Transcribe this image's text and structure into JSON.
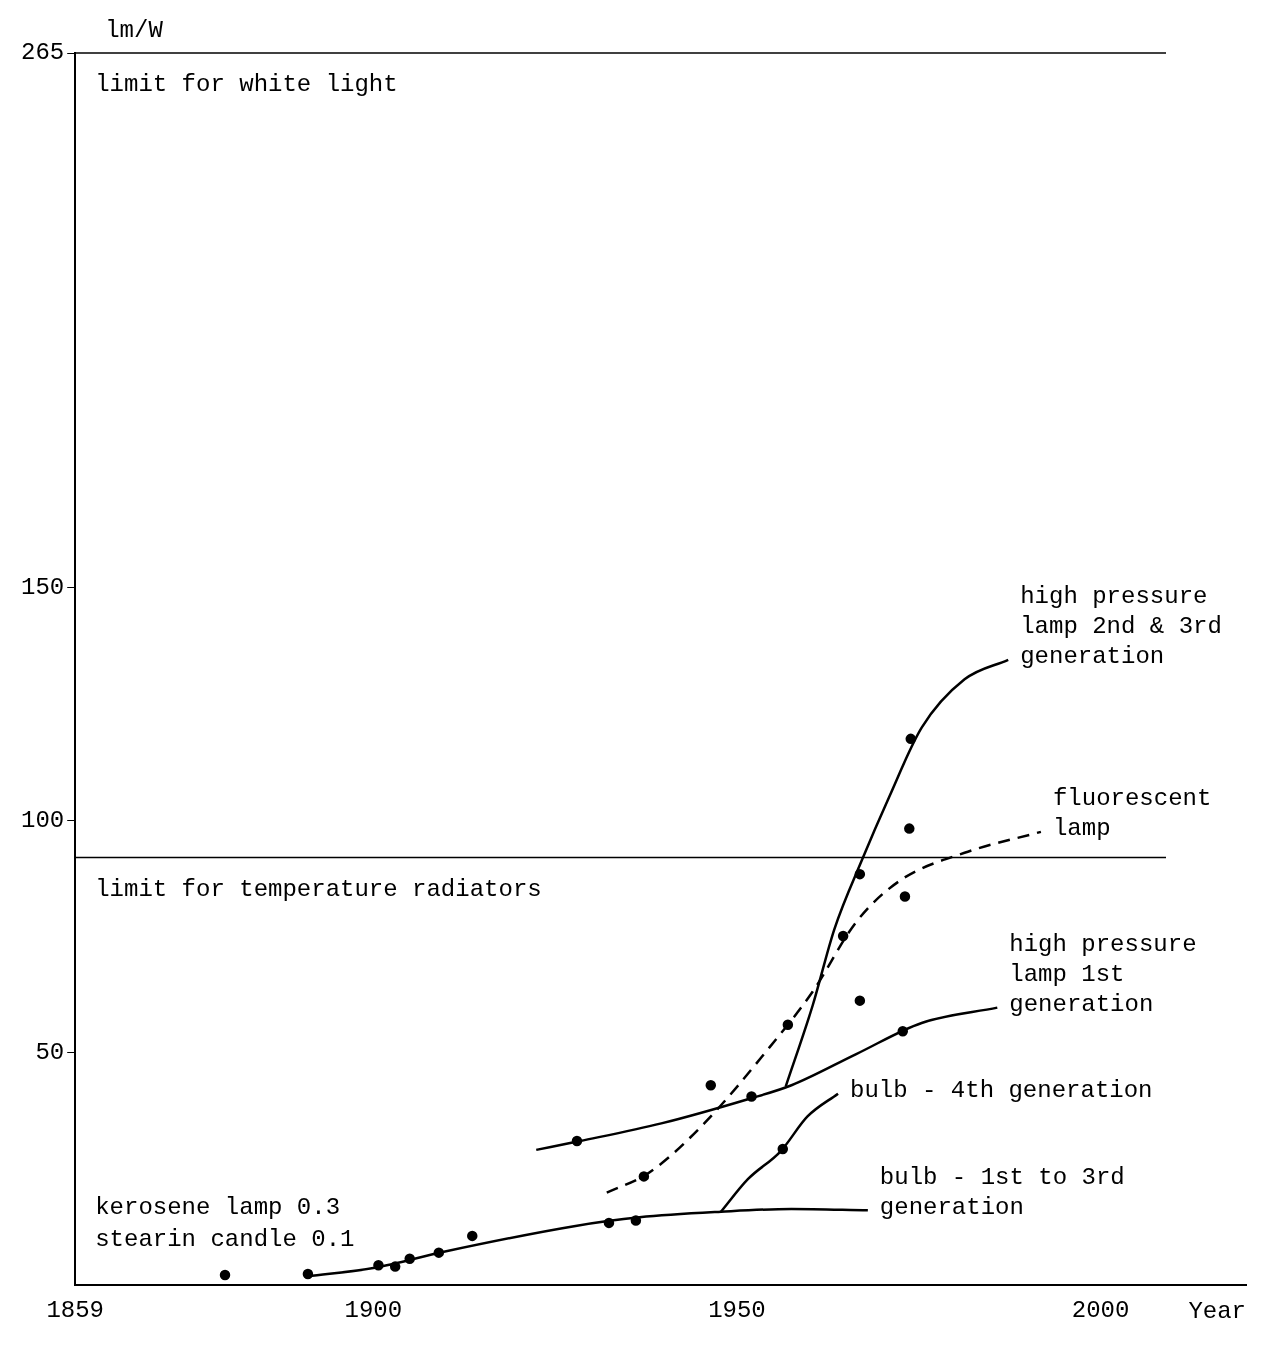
{
  "chart_data": {
    "type": "line",
    "xlabel": "Year",
    "ylabel": "lm/W",
    "xlim": [
      1859,
      2020
    ],
    "xticks": [
      1859,
      1900,
      1950,
      2000
    ],
    "ylim": [
      0,
      265
    ],
    "yticks": [
      50,
      100,
      150,
      265
    ],
    "grid": false,
    "legend": false,
    "marker": "none",
    "ref_lines": [
      {
        "axis": "y",
        "value": 265,
        "label": "limit for white light",
        "color": "#000000"
      },
      {
        "axis": "y",
        "value": 92,
        "label": "limit for temperature radiators",
        "color": "#000000"
      }
    ],
    "annotations": [
      "kerosene lamp 0.3",
      "stearin candle 0.1"
    ],
    "series": [
      {
        "name": "bulb - 1st to 3rd generation",
        "color": "#000000",
        "line_style": "solid",
        "x": [
          1891,
          1900,
          1909.7,
          1927.6,
          1936.6,
          1947.8,
          1957.5,
          1968
        ],
        "values": [
          1.9,
          3.7,
          7.2,
          12.7,
          14.6,
          15.8,
          16.4,
          16.1
        ]
      },
      {
        "name": "bulb - 4th generation",
        "color": "#000000",
        "line_style": "solid",
        "x": [
          1947.8,
          1951.5,
          1956,
          1959.7,
          1963.9
        ],
        "values": [
          15.8,
          22.8,
          28.8,
          36.3,
          41.2
        ]
      },
      {
        "name": "high pressure lamp 1st generation",
        "color": "#000000",
        "line_style": "solid",
        "x": [
          1922.4,
          1928.4,
          1939.6,
          1951.5,
          1957.5,
          1966.4,
          1975.4,
          1985.8
        ],
        "values": [
          29.1,
          31,
          34.8,
          40,
          43,
          49.7,
          56.4,
          59.7
        ]
      },
      {
        "name": "high pressure lamp 2nd & 3rd generation",
        "color": "#000000",
        "line_style": "solid",
        "x": [
          1956.7,
          1960.4,
          1963.4,
          1967.2,
          1970.9,
          1975.4,
          1981.3,
          1987.3
        ],
        "values": [
          42.7,
          60.1,
          76.6,
          91.5,
          104.9,
          119.9,
          130.3,
          134.5
        ]
      },
      {
        "name": "fluorescent lamp",
        "color": "#000000",
        "line_style": "dashed",
        "x": [
          1932.1,
          1938,
          1945.5,
          1954.5,
          1960.4,
          1966.4,
          1972.4,
          1981.3,
          1991.8
        ],
        "values": [
          19.9,
          24.3,
          34.8,
          51.2,
          63.1,
          78.1,
          87,
          93,
          97.5
        ]
      },
      {
        "type": "scatter",
        "color": "#000000",
        "marker": "circle",
        "x": [
          1879.6,
          1891,
          1900.7,
          1903,
          1905,
          1909,
          1913.6,
          1932.4,
          1936.1,
          1956.3,
          1928,
          1952,
          1972.8,
          1966.9,
          1964.6,
          1973.9,
          1973.7,
          1966.9,
          1937.2,
          1946.4,
          1957,
          1973.1
        ],
        "values": [
          2.2,
          2.4,
          4.3,
          4,
          5.7,
          7,
          10.6,
          13.4,
          13.9,
          29.3,
          31,
          40.6,
          54.6,
          88.4,
          75.1,
          117.5,
          98.2,
          61.2,
          23.4,
          43,
          56,
          83.6
        ]
      }
    ]
  }
}
